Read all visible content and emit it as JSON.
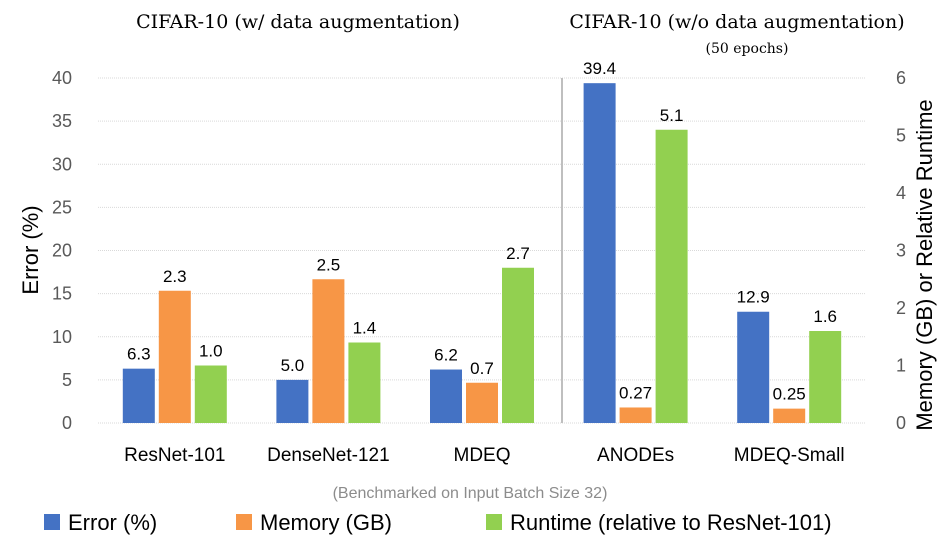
{
  "chart_data": {
    "type": "bar",
    "panel_titles": [
      {
        "title": "CIFAR-10 (w/ data augmentation)",
        "subtitle": ""
      },
      {
        "title": "CIFAR-10 (w/o data augmentation)",
        "subtitle": "(50 epochs)"
      }
    ],
    "categories": [
      "ResNet-101",
      "DenseNet-121",
      "MDEQ",
      "ANODEs",
      "MDEQ-Small"
    ],
    "series": [
      {
        "name": "Error (%)",
        "axis": "left",
        "color": "#4472C4",
        "values": [
          6.3,
          5.0,
          6.2,
          39.4,
          12.9
        ],
        "labels": [
          "6.3",
          "5.0",
          "6.2",
          "39.4",
          "12.9"
        ]
      },
      {
        "name": "Memory (GB)",
        "axis": "right",
        "color": "#F79646",
        "values": [
          2.3,
          2.5,
          0.7,
          0.27,
          0.25
        ],
        "labels": [
          "2.3",
          "2.5",
          "0.7",
          "0.27",
          "0.25"
        ]
      },
      {
        "name": "Runtime (relative to ResNet-101)",
        "axis": "right",
        "color": "#92D050",
        "values": [
          1.0,
          1.4,
          2.7,
          5.1,
          1.6
        ],
        "labels": [
          "1.0",
          "1.4",
          "2.7",
          "5.1",
          "1.6"
        ]
      }
    ],
    "ylabel": "Error (%)",
    "y2label": "Memory (GB) or Relative Runtime",
    "ylim": [
      0,
      40
    ],
    "y2lim": [
      0,
      6
    ],
    "yticks": [
      "0",
      "5",
      "10",
      "15",
      "20",
      "25",
      "30",
      "35",
      "40"
    ],
    "y2ticks": [
      "0",
      "1",
      "2",
      "3",
      "4",
      "5",
      "6"
    ],
    "note": "(Benchmarked on Input Batch Size 32)",
    "grid": true,
    "legend_position": "bottom",
    "divider_after_category": 2
  }
}
